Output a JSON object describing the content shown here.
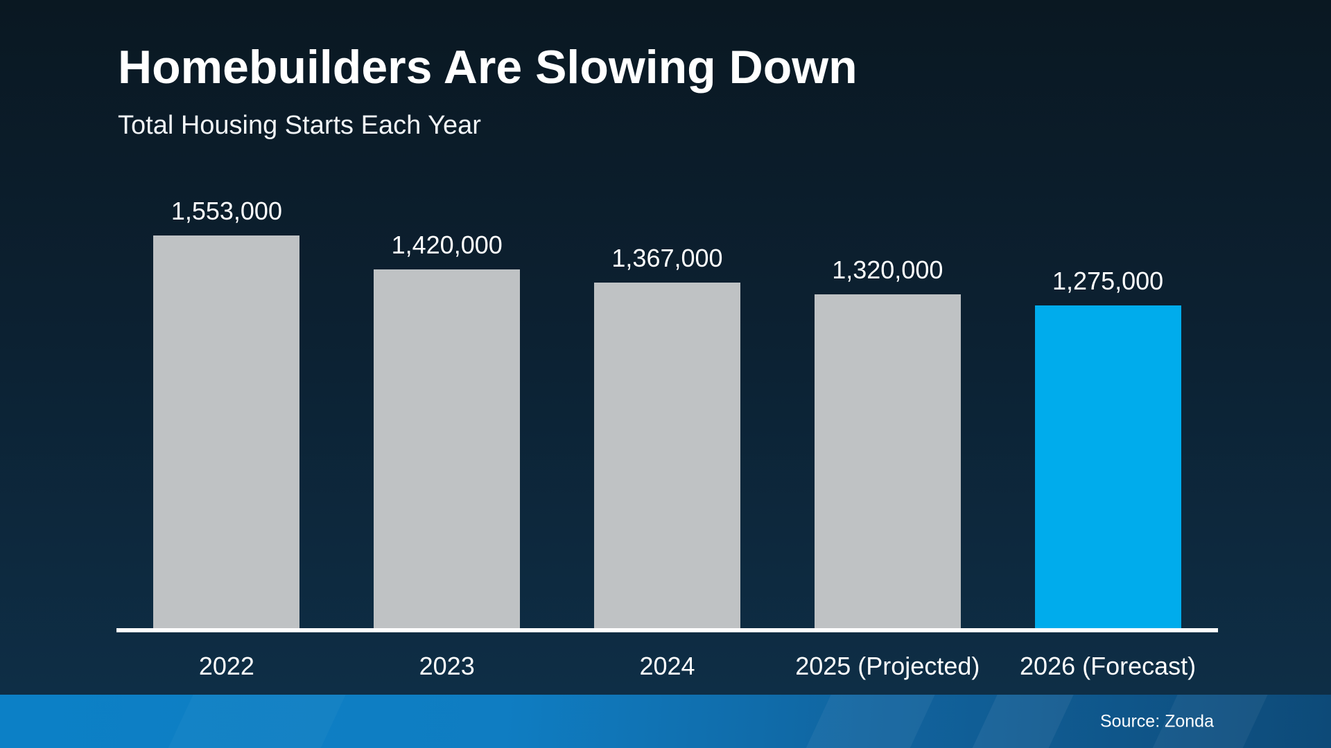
{
  "header": {
    "title": "Homebuilders Are Slowing Down",
    "subtitle": "Total Housing Starts Each Year"
  },
  "footer": {
    "source_label": "Source: Zonda"
  },
  "chart_data": {
    "type": "bar",
    "title": "Homebuilders Are Slowing Down",
    "subtitle": "Total Housing Starts Each Year",
    "categories": [
      "2022",
      "2023",
      "2024",
      "2025 (Projected)",
      "2026 (Forecast)"
    ],
    "values": [
      1553000,
      1420000,
      1367000,
      1320000,
      1275000
    ],
    "value_labels": [
      "1,553,000",
      "1,420,000",
      "1,367,000",
      "1,320,000",
      "1,275,000"
    ],
    "bar_colors": [
      "#bfc2c4",
      "#bfc2c4",
      "#bfc2c4",
      "#bfc2c4",
      "#00acec"
    ],
    "default_bar_color": "#bfc2c4",
    "highlight_bar_color": "#00acec",
    "xlabel": "",
    "ylabel": "",
    "ylim": [
      0,
      1553000
    ],
    "grid": false,
    "legend": false,
    "axis_color": "#ffffff",
    "background_top": "#0a1822",
    "background_bottom": "#0e3049",
    "footer_gradient_left": "#0c80c6",
    "footer_gradient_right": "#0d4a78"
  }
}
